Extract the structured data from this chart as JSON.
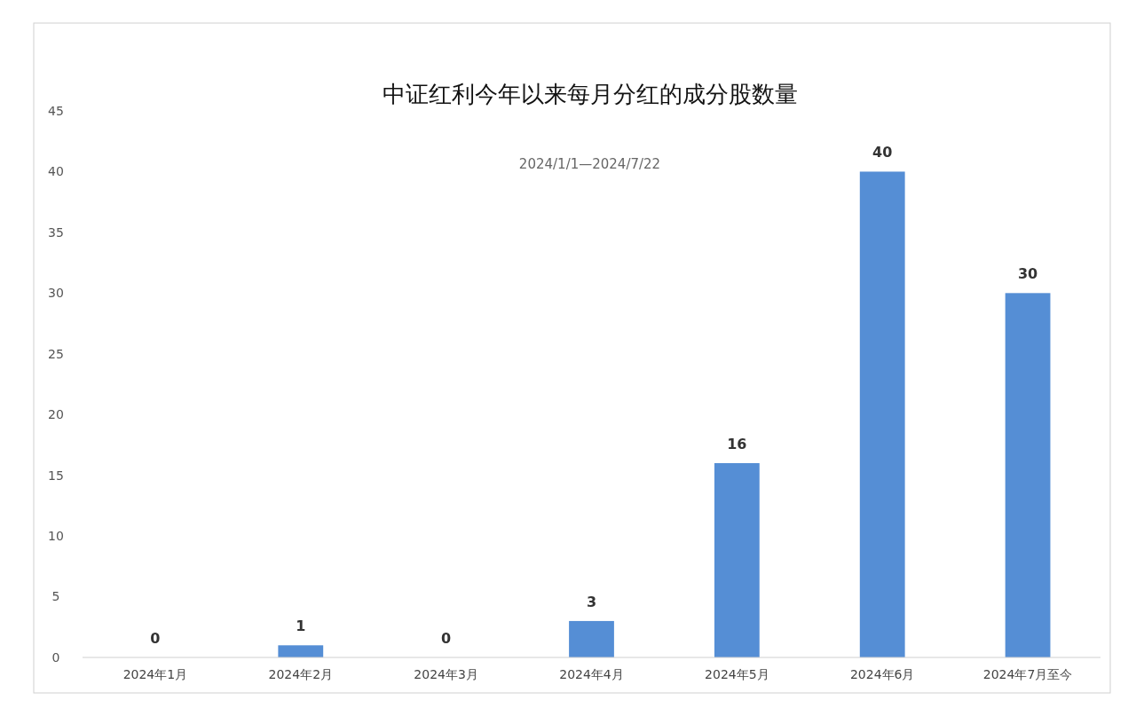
{
  "chart_data": {
    "type": "bar",
    "title": "中证红利今年以来每月分红的成分股数量",
    "annotations": [
      "2024/1/1—2024/7/22"
    ],
    "categories": [
      "2024年1月",
      "2024年2月",
      "2024年3月",
      "2024年4月",
      "2024年5月",
      "2024年6月",
      "2024年7月至今"
    ],
    "values": [
      0,
      1,
      0,
      3,
      16,
      40,
      30
    ],
    "color": "#558ed5",
    "ylim": [
      0,
      45
    ],
    "yticks": [
      0,
      5,
      10,
      15,
      20,
      25,
      30,
      35,
      40,
      45
    ],
    "grid": false,
    "data_labels": true
  }
}
